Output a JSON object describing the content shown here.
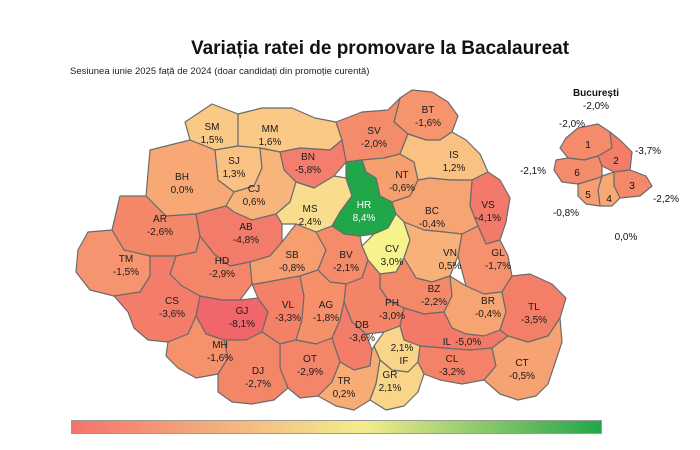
{
  "title": "Variația ratei de promovare la Bacalaureat",
  "subtitle": "Sesiunea iunie 2025 față de 2024 (doar candidați din promoție curentă)",
  "colors": {
    "legend_low": "#f4736c",
    "legend_mid": "#f4ec8c",
    "legend_high": "#22a64a",
    "outline": "#6b6b6b"
  },
  "counties": [
    {
      "code": "SM",
      "value": "1,5%",
      "color": "#f9c985"
    },
    {
      "code": "MM",
      "value": "1,6%",
      "color": "#f9c985"
    },
    {
      "code": "BT",
      "value": "-1,6%",
      "color": "#f6946e"
    },
    {
      "code": "SV",
      "value": "-2,0%",
      "color": "#f48c6b"
    },
    {
      "code": "BN",
      "value": "-5,8%",
      "color": "#f37e6d"
    },
    {
      "code": "SJ",
      "value": "1,3%",
      "color": "#f9c282"
    },
    {
      "code": "BH",
      "value": "0,0%",
      "color": "#f7a874"
    },
    {
      "code": "CJ",
      "value": "0,6%",
      "color": "#f8b57b"
    },
    {
      "code": "NT",
      "value": "-0,6%",
      "color": "#f6a070"
    },
    {
      "code": "IS",
      "value": "1,2%",
      "color": "#f9c283"
    },
    {
      "code": "MS",
      "value": "2,4%",
      "color": "#f9dc8e"
    },
    {
      "code": "HR",
      "value": "8,4%",
      "color": "#22a64a"
    },
    {
      "code": "VS",
      "value": "-4,1%",
      "color": "#f37a6b"
    },
    {
      "code": "BC",
      "value": "-0,4%",
      "color": "#f6a472"
    },
    {
      "code": "AR",
      "value": "-2,6%",
      "color": "#f48768"
    },
    {
      "code": "AB",
      "value": "-4,8%",
      "color": "#f37b69"
    },
    {
      "code": "CV",
      "value": "3,0%",
      "color": "#f6f28c"
    },
    {
      "code": "TM",
      "value": "-1,5%",
      "color": "#f6946f"
    },
    {
      "code": "HD",
      "value": "-2,9%",
      "color": "#f48568"
    },
    {
      "code": "SB",
      "value": "-0,8%",
      "color": "#f69e70"
    },
    {
      "code": "BV",
      "value": "-2,1%",
      "color": "#f48b6a"
    },
    {
      "code": "VN",
      "value": "0,5%",
      "color": "#f8b178"
    },
    {
      "code": "GL",
      "value": "-1,7%",
      "color": "#f5916c"
    },
    {
      "code": "BZ",
      "value": "-2,2%",
      "color": "#f4896a"
    },
    {
      "code": "CS",
      "value": "-3,6%",
      "color": "#f47d69"
    },
    {
      "code": "GJ",
      "value": "-8,1%",
      "color": "#f0666a"
    },
    {
      "code": "VL",
      "value": "-3,3%",
      "color": "#f48068"
    },
    {
      "code": "AG",
      "value": "-1,8%",
      "color": "#f5906b"
    },
    {
      "code": "PH",
      "value": "-3,0%",
      "color": "#f48468"
    },
    {
      "code": "BR",
      "value": "-0,4%",
      "color": "#f6a472"
    },
    {
      "code": "TL",
      "value": "-3,5%",
      "color": "#f47f69"
    },
    {
      "code": "DB",
      "value": "-3,6%",
      "color": "#f47d69"
    },
    {
      "code": "IL",
      "value": "-5,0%",
      "color": "#f37a69"
    },
    {
      "code": "MH",
      "value": "-1,6%",
      "color": "#f5926c"
    },
    {
      "code": "OT",
      "value": "-2,9%",
      "color": "#f48568"
    },
    {
      "code": "IF",
      "value": "2,1%",
      "color": "#f9d58a"
    },
    {
      "code": "CL",
      "value": "-3,2%",
      "color": "#f48268"
    },
    {
      "code": "CT",
      "value": "-0,5%",
      "color": "#f6a272"
    },
    {
      "code": "DJ",
      "value": "-2,7%",
      "color": "#f48668"
    },
    {
      "code": "TR",
      "value": "0,2%",
      "color": "#f7ac76"
    },
    {
      "code": "GR",
      "value": "2,1%",
      "color": "#f9d58a"
    }
  ],
  "bucharest": {
    "title": "București",
    "total": "-2,0%",
    "outside_value": "0,0%",
    "sectors": [
      {
        "num": "1",
        "value": "-2,0%",
        "color": "#f48c6b"
      },
      {
        "num": "2",
        "value": "-3,7%",
        "color": "#f47c69"
      },
      {
        "num": "3",
        "value": "-2,2%",
        "color": "#f4896a"
      },
      {
        "num": "4",
        "value": "0,0%",
        "color": "#f7a874"
      },
      {
        "num": "5",
        "value": "-0,8%",
        "color": "#f69e70"
      },
      {
        "num": "6",
        "value": "-2,1%",
        "color": "#f48b6a"
      }
    ]
  }
}
